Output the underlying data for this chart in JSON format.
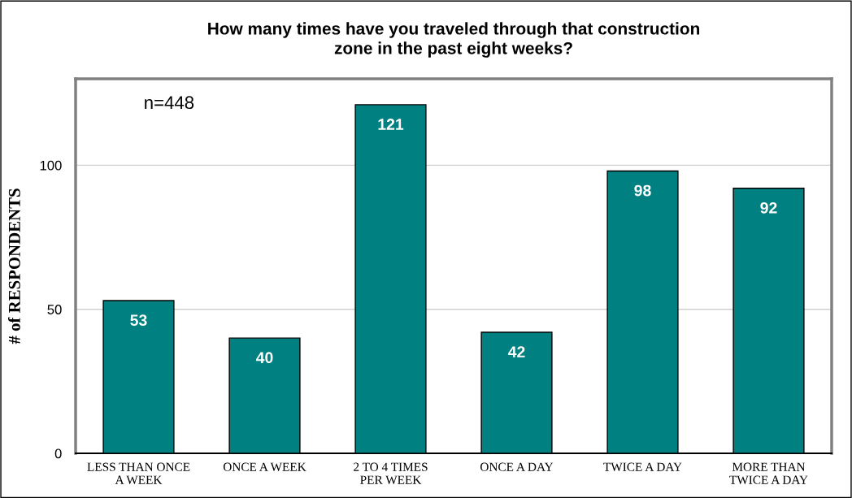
{
  "chart_data": {
    "type": "bar",
    "title": "How many times have you traveled through that construction\nzone in the past eight weeks?",
    "ylabel": "# of RESPONDENTS",
    "categories": [
      "LESS THAN ONCE\nA WEEK",
      "ONCE A WEEK",
      "2 TO 4 TIMES\nPER WEEK",
      "ONCE A DAY",
      "TWICE A DAY",
      "MORE THAN\nTWICE A DAY"
    ],
    "values": [
      53,
      40,
      121,
      42,
      98,
      92
    ],
    "color": "#008080",
    "ylim": [
      0,
      130
    ],
    "yticks": [
      0,
      50,
      100
    ],
    "grid": "y",
    "data_labels": true,
    "legend": false,
    "annotations": [
      "n=448"
    ]
  }
}
